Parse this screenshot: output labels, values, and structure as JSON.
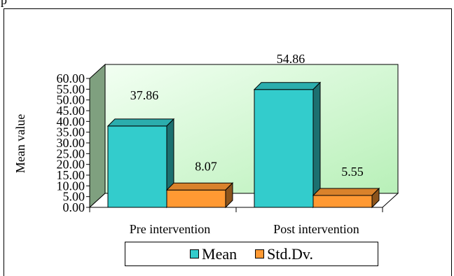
{
  "header": {
    "partial_text": "p"
  },
  "chart_data": {
    "type": "bar",
    "categories": [
      "Pre intervention",
      "Post intervention"
    ],
    "series": [
      {
        "name": "Mean",
        "values": [
          37.86,
          54.86
        ],
        "labels": [
          "37.86",
          "54.86"
        ],
        "color": "#33CCCC"
      },
      {
        "name": "Std.Dv.",
        "values": [
          8.07,
          5.55
        ],
        "labels": [
          "8.07",
          "5.55"
        ],
        "color": "#FF9933"
      }
    ],
    "ylabel": "Mean value",
    "ylim": [
      0,
      60
    ],
    "yticks": [
      "0.00",
      "5.00",
      "10.00",
      "15.00",
      "20.00",
      "25.00",
      "30.00",
      "35.00",
      "40.00",
      "45.00",
      "50.00",
      "55.00",
      "60.00"
    ],
    "legend": "bottom",
    "three_d": true,
    "wall_colors": {
      "back": "#CCFFCC",
      "side": "#7FA07F",
      "floor": "#FFFFFF"
    }
  }
}
